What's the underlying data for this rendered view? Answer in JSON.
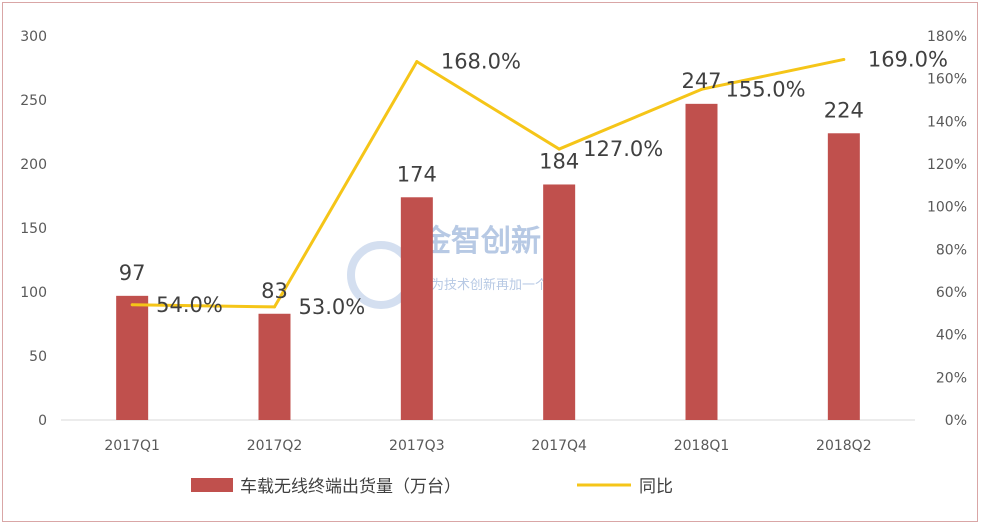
{
  "chart_data": {
    "type": "bar",
    "categories": [
      "2017Q1",
      "2017Q2",
      "2017Q3",
      "2017Q4",
      "2018Q1",
      "2018Q2"
    ],
    "series": [
      {
        "name": "车载无线终端出货量（万台）",
        "type": "bar",
        "axis": "left",
        "values": [
          97,
          83,
          174,
          184,
          247,
          224
        ],
        "color": "#c0504d"
      },
      {
        "name": "同比",
        "type": "line",
        "axis": "right",
        "values": [
          54,
          53,
          168,
          127,
          155,
          169
        ],
        "color": "#f5c518"
      }
    ],
    "value_labels": [
      "97",
      "83",
      "174",
      "184",
      "247",
      "224"
    ],
    "pct_labels": [
      "54.0%",
      "53.0%",
      "168.0%",
      "127.0%",
      "155.0%",
      "169.0%"
    ],
    "y_left": {
      "ylim": [
        0,
        300
      ],
      "ticks": [
        "0",
        "50",
        "100",
        "150",
        "200",
        "250",
        "300"
      ]
    },
    "y_right": {
      "ylim": [
        0,
        180
      ],
      "ticks": [
        "0%",
        "20%",
        "40%",
        "60%",
        "80%",
        "100%",
        "120%",
        "140%",
        "160%",
        "180%"
      ]
    },
    "grid": false,
    "legend_position": "bottom",
    "legend": [
      "车载无线终端出货量（万台）",
      "同比"
    ]
  },
  "watermark": {
    "title": "金智创新",
    "subtitle": "为技术创新再加一个“+”"
  }
}
